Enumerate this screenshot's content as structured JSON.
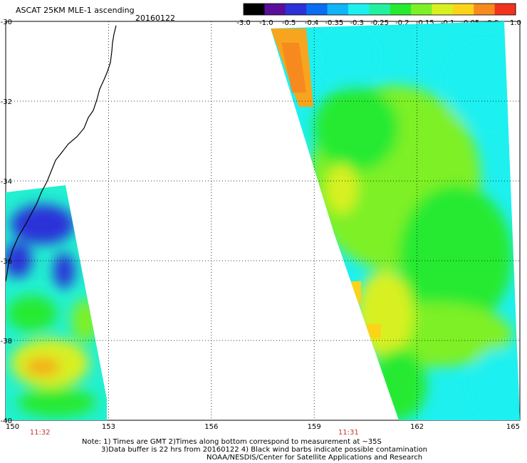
{
  "title": "ASCAT 25KM MLE-1 ascending",
  "date": "20160122",
  "colorbar": {
    "labels": [
      "-3.0",
      "-1.0",
      "-0.5",
      "-0.4",
      "-0.35",
      "-0.3",
      "-0.25",
      "-0.2",
      "-0.15",
      "-0.1",
      "-0.05",
      "0.0",
      "1.0"
    ],
    "colors": [
      "#000000",
      "#5a0f9a",
      "#2a32d8",
      "#0a6cf0",
      "#11b4f6",
      "#1ef0f0",
      "#22f0a0",
      "#27ea30",
      "#7ef028",
      "#d8f020",
      "#fbd419",
      "#f78a1e",
      "#f0321e"
    ]
  },
  "axes": {
    "lat_labels": [
      "-30",
      "-32",
      "-34",
      "-36",
      "-38",
      "-40"
    ],
    "lat_values": [
      -30,
      -32,
      -34,
      -36,
      -38,
      -40
    ],
    "lon_labels": [
      "150",
      "153",
      "156",
      "159",
      "162",
      "165"
    ],
    "lon_values": [
      150,
      153,
      156,
      159,
      162,
      165
    ]
  },
  "swath_times": [
    {
      "label": "11:32",
      "lon": 151
    },
    {
      "label": "11:31",
      "lon": 160
    }
  ],
  "notes": [
    "Note: 1) Times are GMT 2)Times along bottom correspond to measurement at ~35S",
    "3)Data buffer is 22 hrs from 20160122 4) Black wind barbs indicate possible contamination",
    "NOAA/NESDIS/Center for Satellite Applications and Research"
  ]
}
